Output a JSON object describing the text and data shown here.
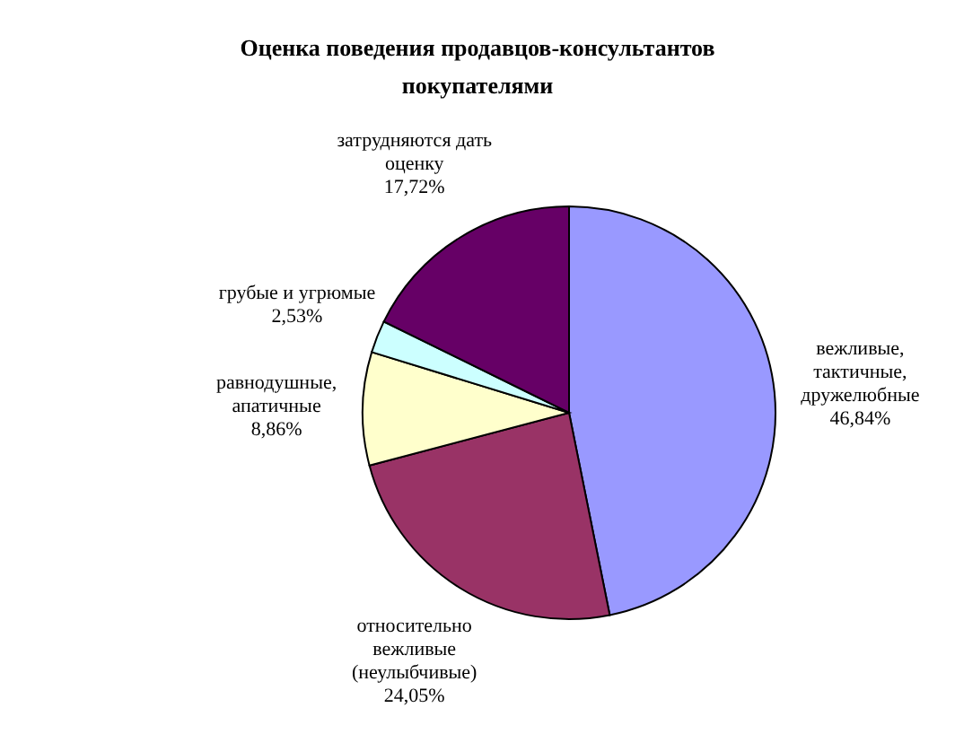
{
  "chart_data": {
    "type": "pie",
    "title": "Оценка поведения продавцов-консультантов покупателями",
    "categories": [
      "вежливые,\nтактичные,\nдружелюбные",
      "относительно\nвежливые\n(неулыбчивые)",
      "равнодушные,\nапатичные",
      "грубые и угрюмые",
      "затрудняются дать\nоценку"
    ],
    "values": [
      46.84,
      24.05,
      8.86,
      2.53,
      17.72
    ],
    "value_labels": [
      "46,84%",
      "24,05%",
      "8,86%",
      "2,53%",
      "17,72%"
    ],
    "colors": [
      "#9999ff",
      "#993366",
      "#ffffcc",
      "#ccffff",
      "#660066"
    ],
    "legend": false
  }
}
